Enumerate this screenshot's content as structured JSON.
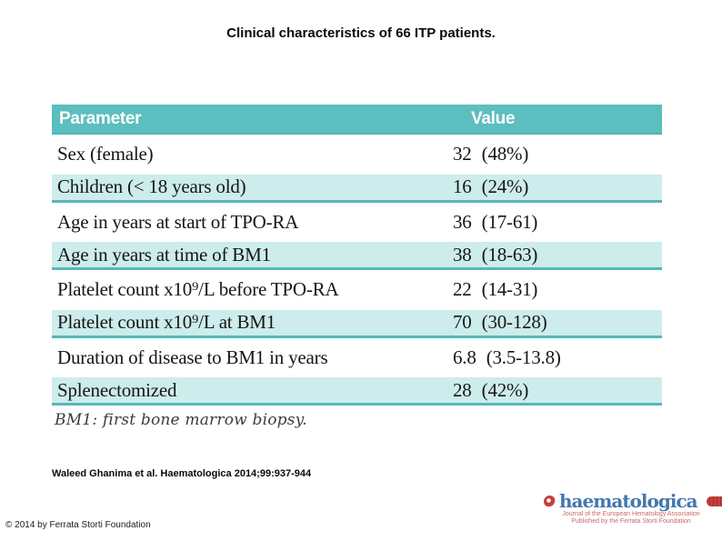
{
  "slide": {
    "title": "Clinical characteristics of 66 ITP patients.",
    "footnote": "BM1: first bone marrow biopsy.",
    "citation": "Waleed Ghanima et al. Haematologica 2014;99:937-944",
    "copyright": "© 2014 by Ferrata Storti Foundation"
  },
  "table": {
    "columns": [
      "Parameter",
      "Value"
    ],
    "rows": [
      {
        "parameter": "Sex (female)",
        "value": "32 (48%)"
      },
      {
        "parameter": "Children (< 18 years old)",
        "value": "16 (24%)"
      },
      {
        "parameter": "Age in years at start of TPO-RA",
        "value": "36 (17-61)"
      },
      {
        "parameter": "Age in years at time of BM1",
        "value": "38 (18-63)"
      },
      {
        "parameter": "Platelet count x10⁹/L before TPO-RA",
        "value": "22 (14-31)"
      },
      {
        "parameter": "Platelet count x10⁹/L at BM1",
        "value": "70 (30-128)"
      },
      {
        "parameter": "Duration of disease to BM1 in years",
        "value": "6.8 (3.5-13.8)"
      },
      {
        "parameter": "Splenectomized",
        "value": "28 (42%)"
      }
    ],
    "colors": {
      "header_bg": "#5cbebe",
      "alt_row_bg": "#cdecec",
      "rule": "#57b7b9"
    }
  },
  "logo": {
    "brand": "haematologica",
    "tagline_line1": "Journal of the European Hematology Association",
    "tagline_line2": "Published by the Ferrata Storti Foundation",
    "brand_color": "#4577ae",
    "accent_color": "#c4403c"
  }
}
